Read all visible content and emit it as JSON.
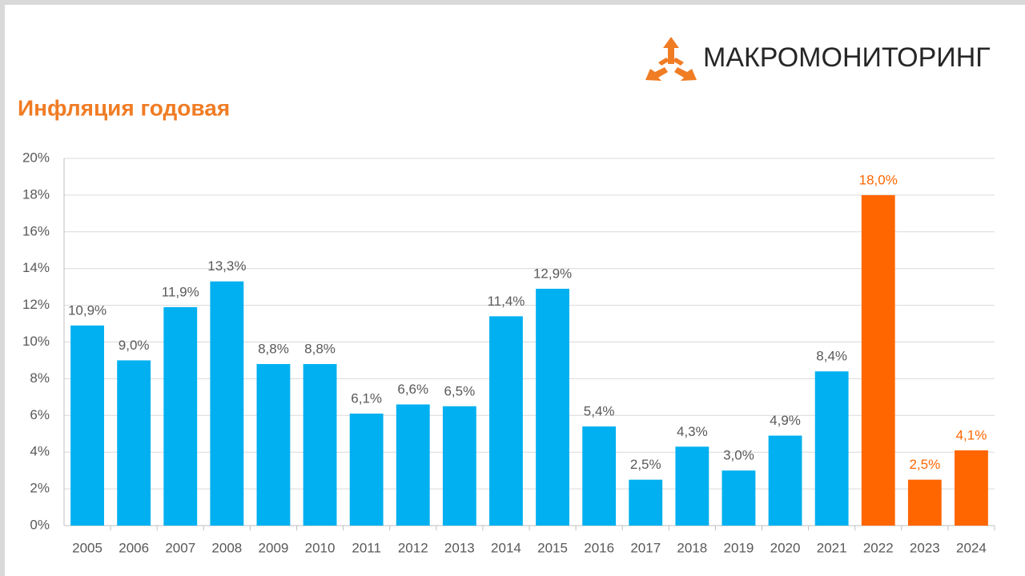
{
  "brand": "МАКРОМОНИТОРИНГ",
  "chart_data": {
    "type": "bar",
    "title": "Инфляция годовая",
    "categories": [
      "2005",
      "2006",
      "2007",
      "2008",
      "2009",
      "2010",
      "2011",
      "2012",
      "2013",
      "2014",
      "2015",
      "2016",
      "2017",
      "2018",
      "2019",
      "2020",
      "2021",
      "2022",
      "2023",
      "2024"
    ],
    "values": [
      10.9,
      9.0,
      11.9,
      13.3,
      8.8,
      8.8,
      6.1,
      6.6,
      6.5,
      11.4,
      12.9,
      5.4,
      2.5,
      4.3,
      3.0,
      4.9,
      8.4,
      18.0,
      2.5,
      4.1
    ],
    "value_labels": [
      "10,9%",
      "9,0%",
      "11,9%",
      "13,3%",
      "8,8%",
      "8,8%",
      "6,1%",
      "6,6%",
      "6,5%",
      "11,4%",
      "12,9%",
      "5,4%",
      "2,5%",
      "4,3%",
      "3,0%",
      "4,9%",
      "8,4%",
      "18,0%",
      "2,5%",
      "4,1%"
    ],
    "colors": [
      "#00b0f0",
      "#00b0f0",
      "#00b0f0",
      "#00b0f0",
      "#00b0f0",
      "#00b0f0",
      "#00b0f0",
      "#00b0f0",
      "#00b0f0",
      "#00b0f0",
      "#00b0f0",
      "#00b0f0",
      "#00b0f0",
      "#00b0f0",
      "#00b0f0",
      "#00b0f0",
      "#00b0f0",
      "#ff6600",
      "#ff6600",
      "#ff6600"
    ],
    "ylim": [
      0,
      20
    ],
    "yticks": [
      {
        "value": 0,
        "label": "0%"
      },
      {
        "value": 2,
        "label": "2%"
      },
      {
        "value": 4,
        "label": "4%"
      },
      {
        "value": 6,
        "label": "6%"
      },
      {
        "value": 8,
        "label": "8%"
      },
      {
        "value": 10,
        "label": "10%"
      },
      {
        "value": 12,
        "label": "12%"
      },
      {
        "value": 14,
        "label": "14%"
      },
      {
        "value": 16,
        "label": "16%"
      },
      {
        "value": 18,
        "label": "18%"
      },
      {
        "value": 20,
        "label": "20%"
      }
    ],
    "grid": true
  }
}
